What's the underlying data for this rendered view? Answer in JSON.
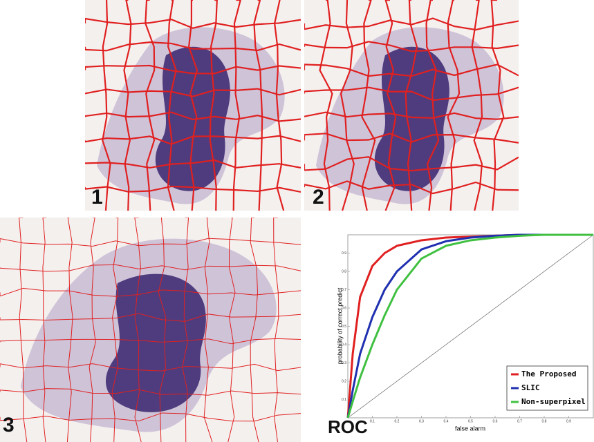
{
  "panels": [
    "1",
    "2",
    "3"
  ],
  "chart_data": {
    "type": "line",
    "title": "ROC",
    "x_label": "false alarm",
    "y_label": "probability of correct predict",
    "xlim": [
      0,
      1
    ],
    "ylim": [
      0,
      1
    ],
    "xticks": [
      0.1,
      0.2,
      0.3,
      0.4,
      0.5,
      0.6,
      0.7,
      0.8,
      0.9
    ],
    "yticks": [
      0.1,
      0.2,
      0.3,
      0.4,
      0.5,
      0.6,
      0.7,
      0.8,
      0.9
    ],
    "legend": "lower right",
    "x": [
      0,
      0.02,
      0.05,
      0.1,
      0.15,
      0.2,
      0.3,
      0.4,
      0.5,
      0.6,
      0.7,
      0.8,
      0.9,
      1
    ],
    "series": [
      {
        "name": "The Proposed",
        "color": "#e02020",
        "values": [
          0,
          0.35,
          0.66,
          0.83,
          0.9,
          0.94,
          0.97,
          0.985,
          0.99,
          0.995,
          1,
          1,
          1,
          1
        ]
      },
      {
        "name": "SLIC",
        "color": "#2030b0",
        "values": [
          0,
          0.15,
          0.35,
          0.55,
          0.7,
          0.8,
          0.92,
          0.965,
          0.985,
          0.995,
          1,
          1,
          1,
          1
        ]
      },
      {
        "name": "Non-superpixel",
        "color": "#40c040",
        "values": [
          0,
          0.09,
          0.22,
          0.4,
          0.56,
          0.7,
          0.87,
          0.94,
          0.97,
          0.985,
          0.995,
          1,
          1,
          1
        ]
      }
    ]
  }
}
